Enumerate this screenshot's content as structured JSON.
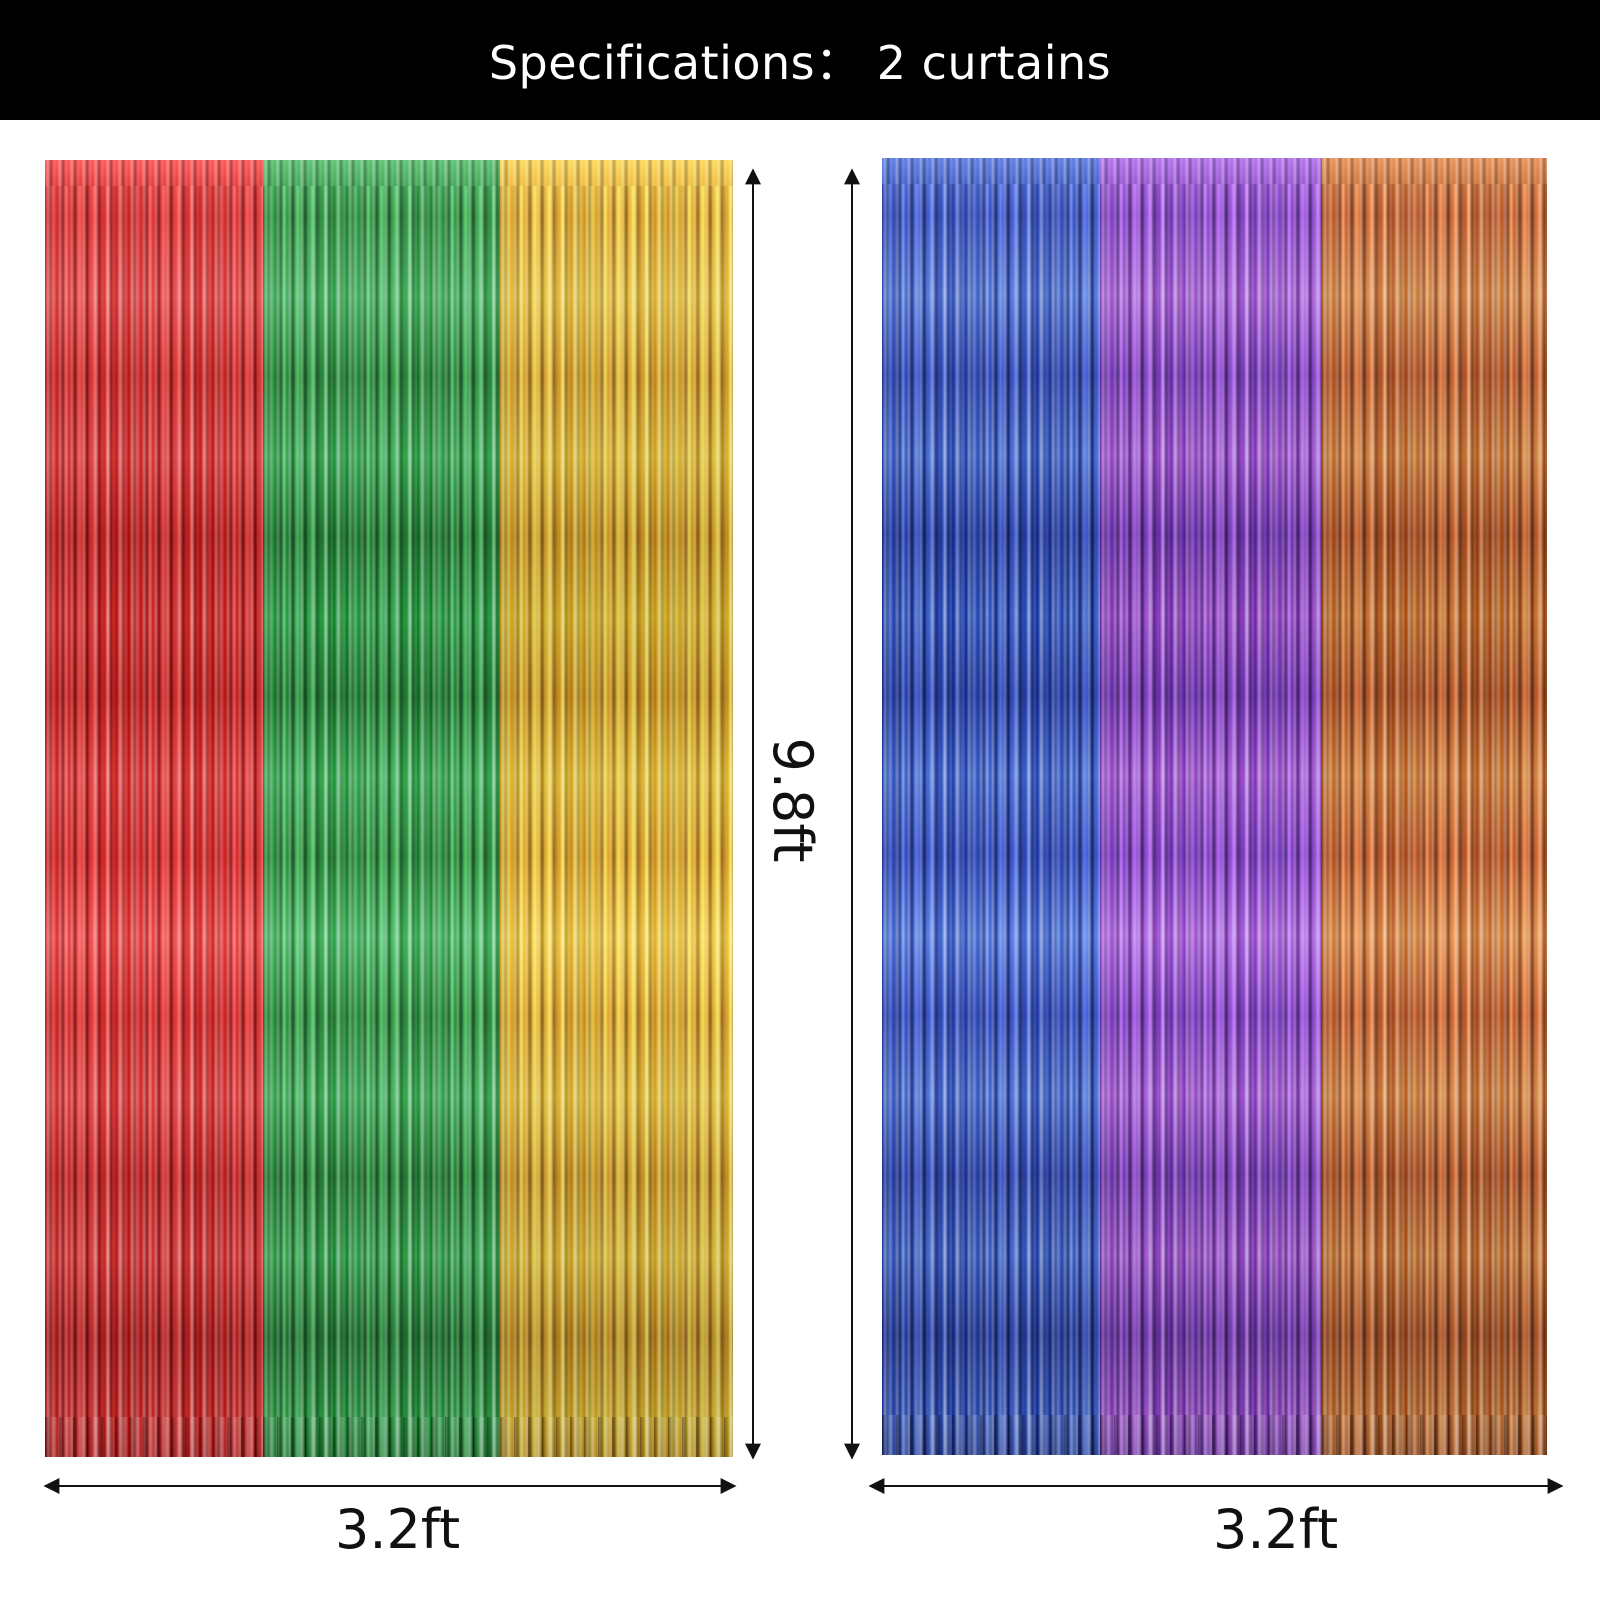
{
  "header": {
    "title": "Specifications： 2 curtains"
  },
  "dimensions": {
    "height_label": "9.8ft",
    "width_label_left": "3.2ft",
    "width_label_right": "3.2ft"
  },
  "curtains": {
    "left_set": [
      {
        "color_name": "red",
        "color": "#e41a1a"
      },
      {
        "color_name": "green",
        "color": "#1f9a3a"
      },
      {
        "color_name": "gold",
        "color": "#efb41c"
      }
    ],
    "right_set": [
      {
        "color_name": "blue",
        "color": "#2448c4"
      },
      {
        "color_name": "purple",
        "color": "#8a3ad0"
      },
      {
        "color_name": "orange",
        "color": "#c9601c"
      }
    ]
  }
}
